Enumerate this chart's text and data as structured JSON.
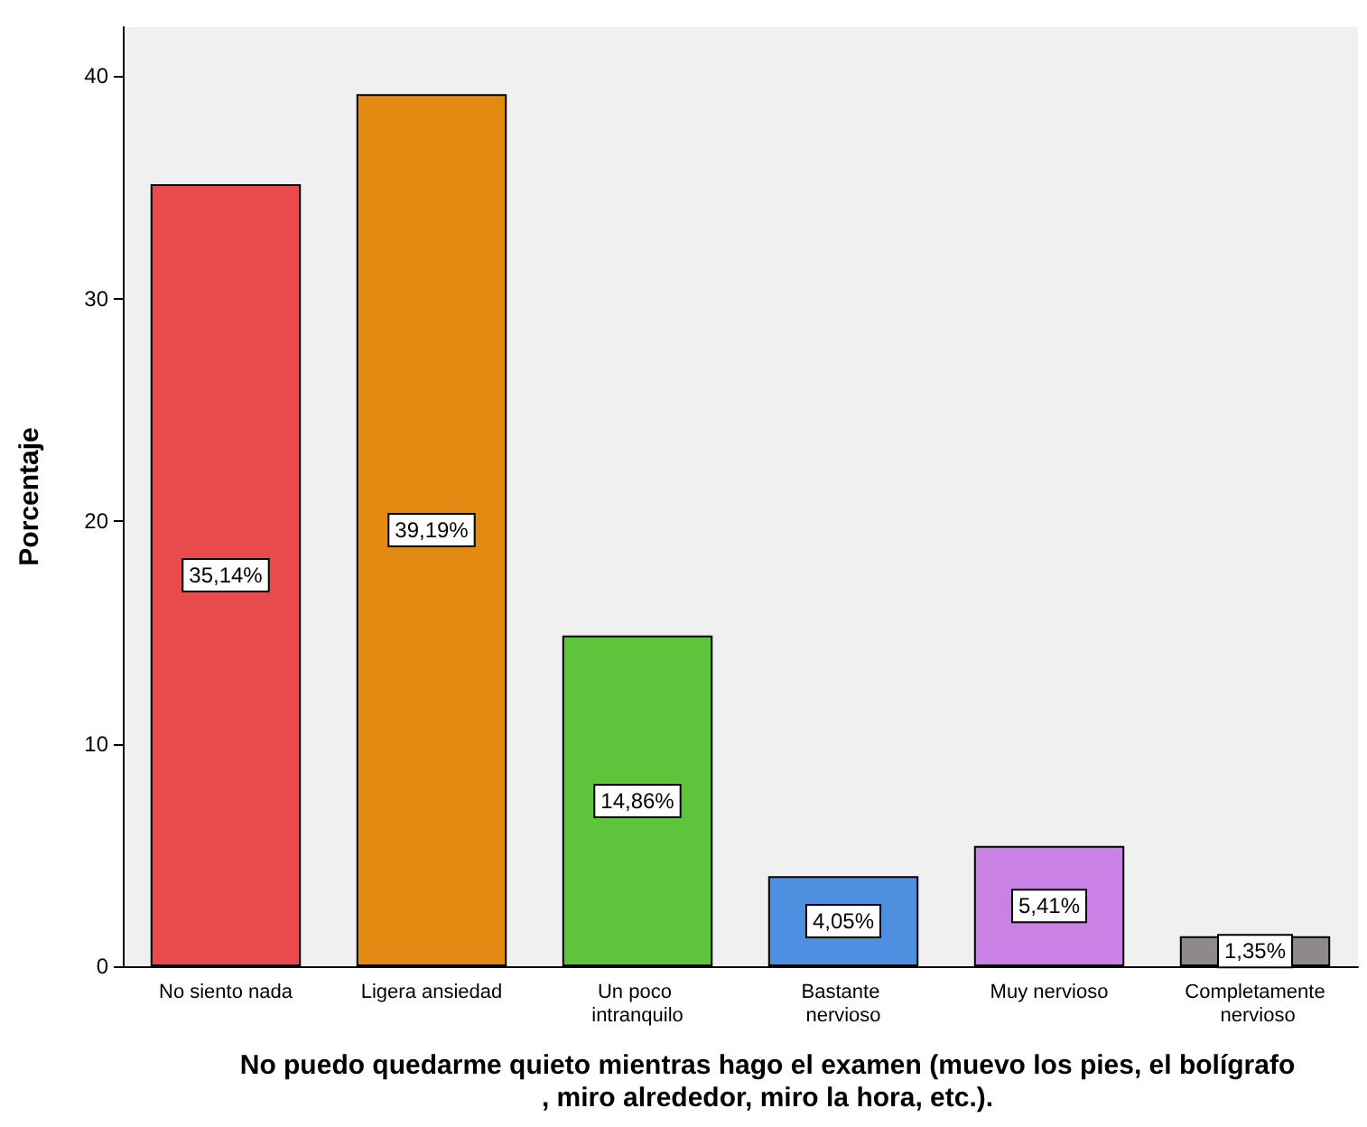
{
  "chart_data": {
    "type": "bar",
    "xlabel": "No puedo quedarme quieto mientras hago el examen (muevo los pies, el bolígrafo, miro alrededor, miro la hora, etc.).",
    "ylabel": "Porcentaje",
    "categories": [
      "No siento nada",
      "Ligera ansiedad",
      "Un poco intranquilo",
      "Bastante nervioso",
      "Muy nervioso",
      "Completamente nervioso"
    ],
    "values": [
      35.14,
      39.19,
      14.86,
      4.05,
      5.41,
      1.35
    ],
    "value_labels": [
      "35,14%",
      "39,19%",
      "14,86%",
      "4,05%",
      "5,41%",
      "1,35%"
    ],
    "colors": [
      "#e94b4c",
      "#e38a12",
      "#5ec43c",
      "#4e8fe0",
      "#c981e6",
      "#8e8a8a"
    ],
    "ylim": [
      0,
      42.2
    ],
    "yticks": [
      0,
      10,
      20,
      30,
      40
    ],
    "grid": false
  }
}
